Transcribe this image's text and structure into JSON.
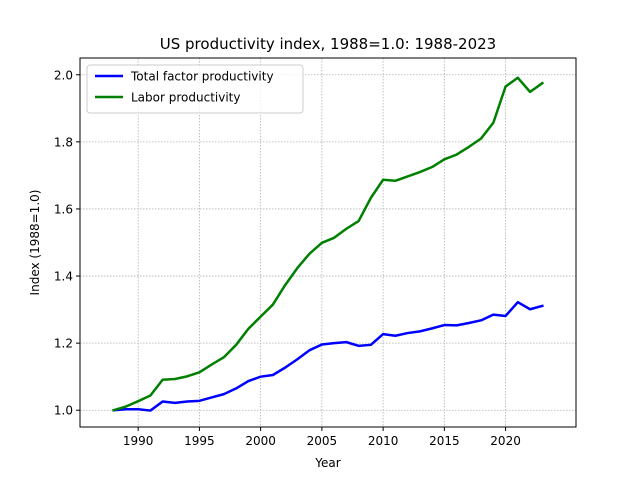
{
  "chart_data": {
    "type": "line",
    "title": "US productivity index, 1988=1.0: 1988-2023",
    "xlabel": "Year",
    "ylabel": "Index (1988=1.0)",
    "xlim": [
      1985.25,
      2025.75
    ],
    "ylim": [
      0.95,
      2.05
    ],
    "xticks": [
      1990,
      1995,
      2000,
      2005,
      2010,
      2015,
      2020
    ],
    "yticks": [
      1.0,
      1.2,
      1.4,
      1.6,
      1.8,
      2.0
    ],
    "ytick_labels": [
      "1.0",
      "1.2",
      "1.4",
      "1.6",
      "1.8",
      "2.0"
    ],
    "grid": true,
    "legend_position": "top-left",
    "x": [
      1988,
      1989,
      1990,
      1991,
      1992,
      1993,
      1994,
      1995,
      1996,
      1997,
      1998,
      1999,
      2000,
      2001,
      2002,
      2003,
      2004,
      2005,
      2006,
      2007,
      2008,
      2009,
      2010,
      2011,
      2012,
      2013,
      2014,
      2015,
      2016,
      2017,
      2018,
      2019,
      2020,
      2021,
      2022,
      2023
    ],
    "series": [
      {
        "name": "Total factor productivity",
        "color": "#0000ff",
        "values": [
          1.0,
          1.003,
          1.003,
          0.999,
          1.026,
          1.022,
          1.026,
          1.028,
          1.038,
          1.048,
          1.065,
          1.087,
          1.1,
          1.105,
          1.127,
          1.152,
          1.179,
          1.196,
          1.2,
          1.203,
          1.192,
          1.195,
          1.227,
          1.222,
          1.23,
          1.235,
          1.244,
          1.254,
          1.253,
          1.26,
          1.268,
          1.285,
          1.281,
          1.322,
          1.301,
          1.311
        ]
      },
      {
        "name": "Labor productivity",
        "color": "#008000",
        "values": [
          1.0,
          1.011,
          1.027,
          1.044,
          1.091,
          1.093,
          1.101,
          1.113,
          1.136,
          1.158,
          1.195,
          1.243,
          1.279,
          1.315,
          1.373,
          1.424,
          1.467,
          1.499,
          1.514,
          1.541,
          1.564,
          1.633,
          1.687,
          1.684,
          1.697,
          1.71,
          1.725,
          1.748,
          1.762,
          1.785,
          1.81,
          1.857,
          1.965,
          1.991,
          1.949,
          1.975
        ]
      }
    ]
  }
}
